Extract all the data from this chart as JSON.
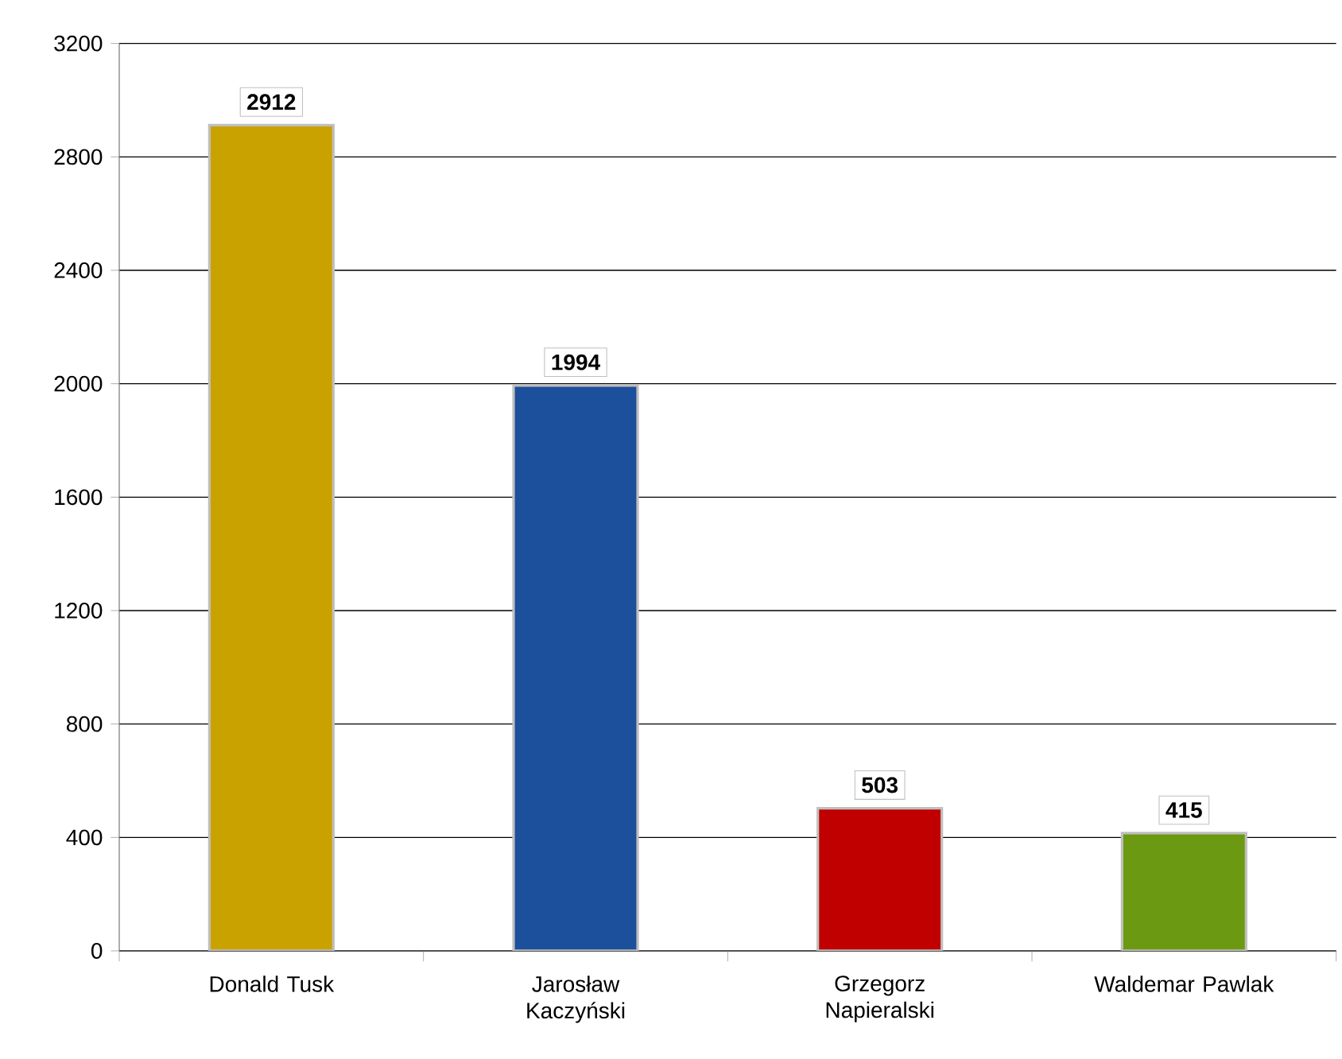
{
  "chart_data": {
    "type": "bar",
    "categories": [
      "Donald Tusk",
      "Jarosław Kaczyński",
      "Grzegorz Napieralski",
      "Waldemar Pawlak"
    ],
    "values": [
      2912,
      1994,
      503,
      415
    ],
    "colors": [
      "#c9a200",
      "#1c4f9c",
      "#c00000",
      "#6b9a12"
    ],
    "ylim": [
      0,
      3200
    ],
    "yticks": [
      0,
      400,
      800,
      1200,
      1600,
      2000,
      2400,
      2800,
      3200
    ],
    "grid": "y",
    "data_labels": true
  }
}
